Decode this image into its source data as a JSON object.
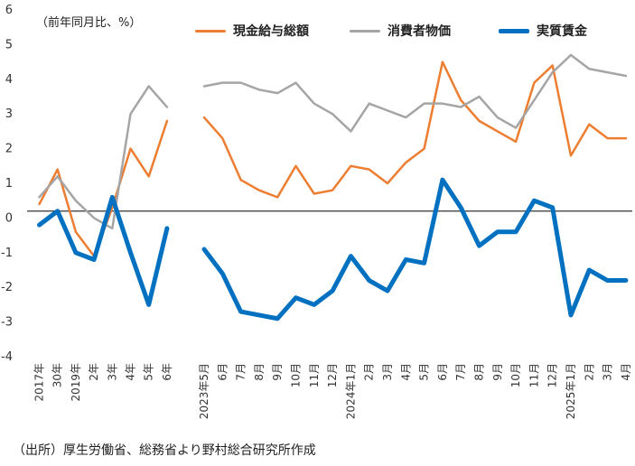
{
  "chart_data": {
    "type": "line",
    "unit_label": "（前年同月比、%）",
    "source": "（出所）厚生労働省、総務省より野村総合研究所作成",
    "ylim": [
      -4,
      6
    ],
    "yticks": [
      -4,
      -3,
      -2,
      -1,
      0,
      1,
      2,
      3,
      4,
      5,
      6
    ],
    "zero_line": 0.2,
    "categories": [
      "2017年",
      "30年",
      "2019年",
      "2年",
      "3年",
      "4年",
      "5年",
      "6年",
      "2023年5月",
      "6月",
      "7月",
      "8月",
      "9月",
      "10月",
      "11月",
      "12月",
      "2024年1月",
      "2月",
      "3月",
      "4月",
      "5月",
      "6月",
      "7月",
      "8月",
      "9月",
      "10月",
      "11月",
      "12月",
      "2025年1月",
      "2月",
      "3月",
      "4月"
    ],
    "series": [
      {
        "name": "現金給与総額",
        "color": "#ED7D31",
        "width": 2.5,
        "values": [
          0.4,
          1.4,
          -0.4,
          -1.1,
          0.3,
          2.0,
          1.2,
          2.8,
          2.9,
          2.3,
          1.1,
          0.8,
          0.6,
          1.5,
          0.7,
          0.8,
          1.5,
          1.4,
          1.0,
          1.6,
          2.0,
          4.5,
          3.4,
          2.8,
          2.5,
          2.2,
          3.9,
          4.4,
          1.8,
          2.7,
          2.3,
          2.3
        ]
      },
      {
        "name": "消費者物価",
        "color": "#A5A5A5",
        "width": 2.5,
        "values": [
          0.6,
          1.2,
          0.5,
          0.0,
          -0.3,
          3.0,
          3.8,
          3.2,
          3.8,
          3.9,
          3.9,
          3.7,
          3.6,
          3.9,
          3.3,
          3.0,
          2.5,
          3.3,
          3.1,
          2.9,
          3.3,
          3.3,
          3.2,
          3.5,
          2.9,
          2.6,
          3.4,
          4.2,
          4.7,
          4.3,
          4.2,
          4.1
        ]
      },
      {
        "name": "実質賃金",
        "color": "#0070C0",
        "width": 5,
        "values": [
          -0.2,
          0.2,
          -1.0,
          -1.2,
          0.6,
          -1.0,
          -2.5,
          -0.3,
          -0.9,
          -1.6,
          -2.7,
          -2.8,
          -2.9,
          -2.3,
          -2.5,
          -2.1,
          -1.1,
          -1.8,
          -2.1,
          -1.2,
          -1.3,
          1.1,
          0.3,
          -0.8,
          -0.4,
          -0.4,
          0.5,
          0.3,
          -2.8,
          -1.5,
          -1.8,
          -1.8
        ]
      }
    ]
  }
}
